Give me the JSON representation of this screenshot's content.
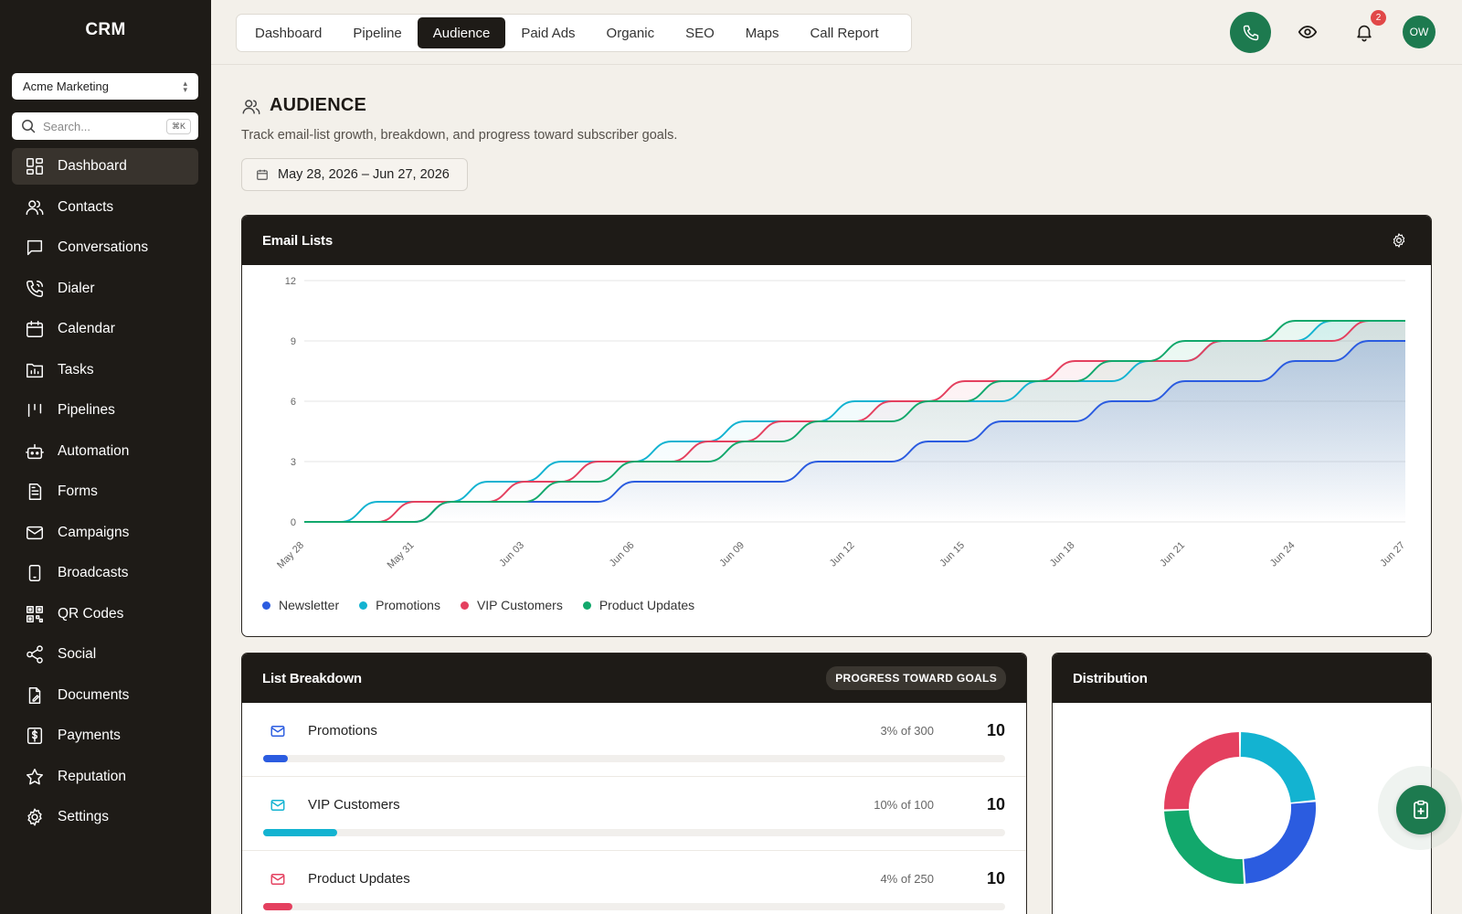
{
  "sidebar": {
    "brand": "CRM",
    "workspace": "Acme Marketing",
    "search_placeholder": "Search...",
    "search_shortcut": "⌘K",
    "items": [
      {
        "label": "Dashboard",
        "icon": "dashboard-icon",
        "active": true
      },
      {
        "label": "Contacts",
        "icon": "contacts-icon"
      },
      {
        "label": "Conversations",
        "icon": "chat-icon"
      },
      {
        "label": "Dialer",
        "icon": "phone-icon"
      },
      {
        "label": "Calendar",
        "icon": "calendar-icon"
      },
      {
        "label": "Tasks",
        "icon": "tasks-icon"
      },
      {
        "label": "Pipelines",
        "icon": "pipelines-icon"
      },
      {
        "label": "Automation",
        "icon": "robot-icon"
      },
      {
        "label": "Forms",
        "icon": "form-icon"
      },
      {
        "label": "Campaigns",
        "icon": "mail-icon"
      },
      {
        "label": "Broadcasts",
        "icon": "broadcast-icon"
      },
      {
        "label": "QR Codes",
        "icon": "qr-icon"
      },
      {
        "label": "Social",
        "icon": "share-icon"
      },
      {
        "label": "Documents",
        "icon": "document-icon"
      },
      {
        "label": "Payments",
        "icon": "dollar-icon"
      },
      {
        "label": "Reputation",
        "icon": "star-icon"
      },
      {
        "label": "Settings",
        "icon": "gear-icon"
      }
    ]
  },
  "topbar": {
    "tabs": [
      "Dashboard",
      "Pipeline",
      "Audience",
      "Paid Ads",
      "Organic",
      "SEO",
      "Maps",
      "Call Report"
    ],
    "active_tab": "Audience",
    "notification_count": "2",
    "avatar_initials": "OW"
  },
  "page": {
    "title": "AUDIENCE",
    "subtitle": "Track email-list growth, breakdown, and progress toward subscriber goals.",
    "date_range": "May 28, 2026 – Jun 27, 2026"
  },
  "email_lists": {
    "title": "Email Lists"
  },
  "chart_data": {
    "type": "area",
    "x": [
      "May 28",
      "May 29",
      "May 30",
      "May 31",
      "Jun 01",
      "Jun 02",
      "Jun 03",
      "Jun 04",
      "Jun 05",
      "Jun 06",
      "Jun 07",
      "Jun 08",
      "Jun 09",
      "Jun 10",
      "Jun 11",
      "Jun 12",
      "Jun 13",
      "Jun 14",
      "Jun 15",
      "Jun 16",
      "Jun 17",
      "Jun 18",
      "Jun 19",
      "Jun 20",
      "Jun 21",
      "Jun 22",
      "Jun 23",
      "Jun 24",
      "Jun 25",
      "Jun 26",
      "Jun 27"
    ],
    "x_tick_labels": [
      "May 28",
      "May 31",
      "Jun 03",
      "Jun 06",
      "Jun 09",
      "Jun 12",
      "Jun 15",
      "Jun 18",
      "Jun 21",
      "Jun 24",
      "Jun 27"
    ],
    "y_ticks": [
      0,
      3,
      6,
      9,
      12
    ],
    "ylim": [
      0,
      12
    ],
    "grid": true,
    "legend_position": "bottom-left",
    "series": [
      {
        "name": "Newsletter",
        "color": "#2b5ce0",
        "values": [
          0,
          0,
          0,
          0,
          1,
          1,
          1,
          1,
          1,
          2,
          2,
          2,
          2,
          2,
          3,
          3,
          3,
          4,
          4,
          5,
          5,
          5,
          6,
          6,
          7,
          7,
          7,
          8,
          8,
          9,
          9
        ]
      },
      {
        "name": "Promotions",
        "color": "#13b3d1",
        "values": [
          0,
          0,
          1,
          1,
          1,
          2,
          2,
          3,
          3,
          3,
          4,
          4,
          5,
          5,
          5,
          6,
          6,
          6,
          6,
          6,
          7,
          7,
          7,
          8,
          8,
          9,
          9,
          9,
          10,
          10,
          10
        ]
      },
      {
        "name": "VIP Customers",
        "color": "#e4405f",
        "values": [
          0,
          0,
          0,
          1,
          1,
          1,
          2,
          2,
          3,
          3,
          3,
          4,
          4,
          5,
          5,
          5,
          6,
          6,
          7,
          7,
          7,
          8,
          8,
          8,
          8,
          9,
          9,
          9,
          9,
          10,
          10
        ]
      },
      {
        "name": "Product Updates",
        "color": "#12a86c",
        "values": [
          0,
          0,
          0,
          0,
          1,
          1,
          1,
          2,
          2,
          3,
          3,
          3,
          4,
          4,
          5,
          5,
          5,
          6,
          6,
          7,
          7,
          7,
          8,
          8,
          9,
          9,
          9,
          10,
          10,
          10,
          10
        ]
      }
    ]
  },
  "breakdown": {
    "title": "List Breakdown",
    "badge": "PROGRESS TOWARD GOALS",
    "rows": [
      {
        "name": "Promotions",
        "pct_text": "3% of 300",
        "value": "10",
        "progress": 0.033,
        "color": "#2b5ce0",
        "icon_color": "#2b5ce0"
      },
      {
        "name": "VIP Customers",
        "pct_text": "10% of 100",
        "value": "10",
        "progress": 0.1,
        "color": "#13b3d1",
        "icon_color": "#13b3d1"
      },
      {
        "name": "Product Updates",
        "pct_text": "4% of 250",
        "value": "10",
        "progress": 0.04,
        "color": "#e4405f",
        "icon_color": "#e4405f"
      }
    ]
  },
  "distribution": {
    "title": "Distribution",
    "slices": [
      {
        "color": "#13b3d1",
        "value": 23.5
      },
      {
        "color": "#2b5ce0",
        "value": 25.5
      },
      {
        "color": "#12a86c",
        "value": 25.5
      },
      {
        "color": "#e4405f",
        "value": 25.5
      }
    ]
  }
}
